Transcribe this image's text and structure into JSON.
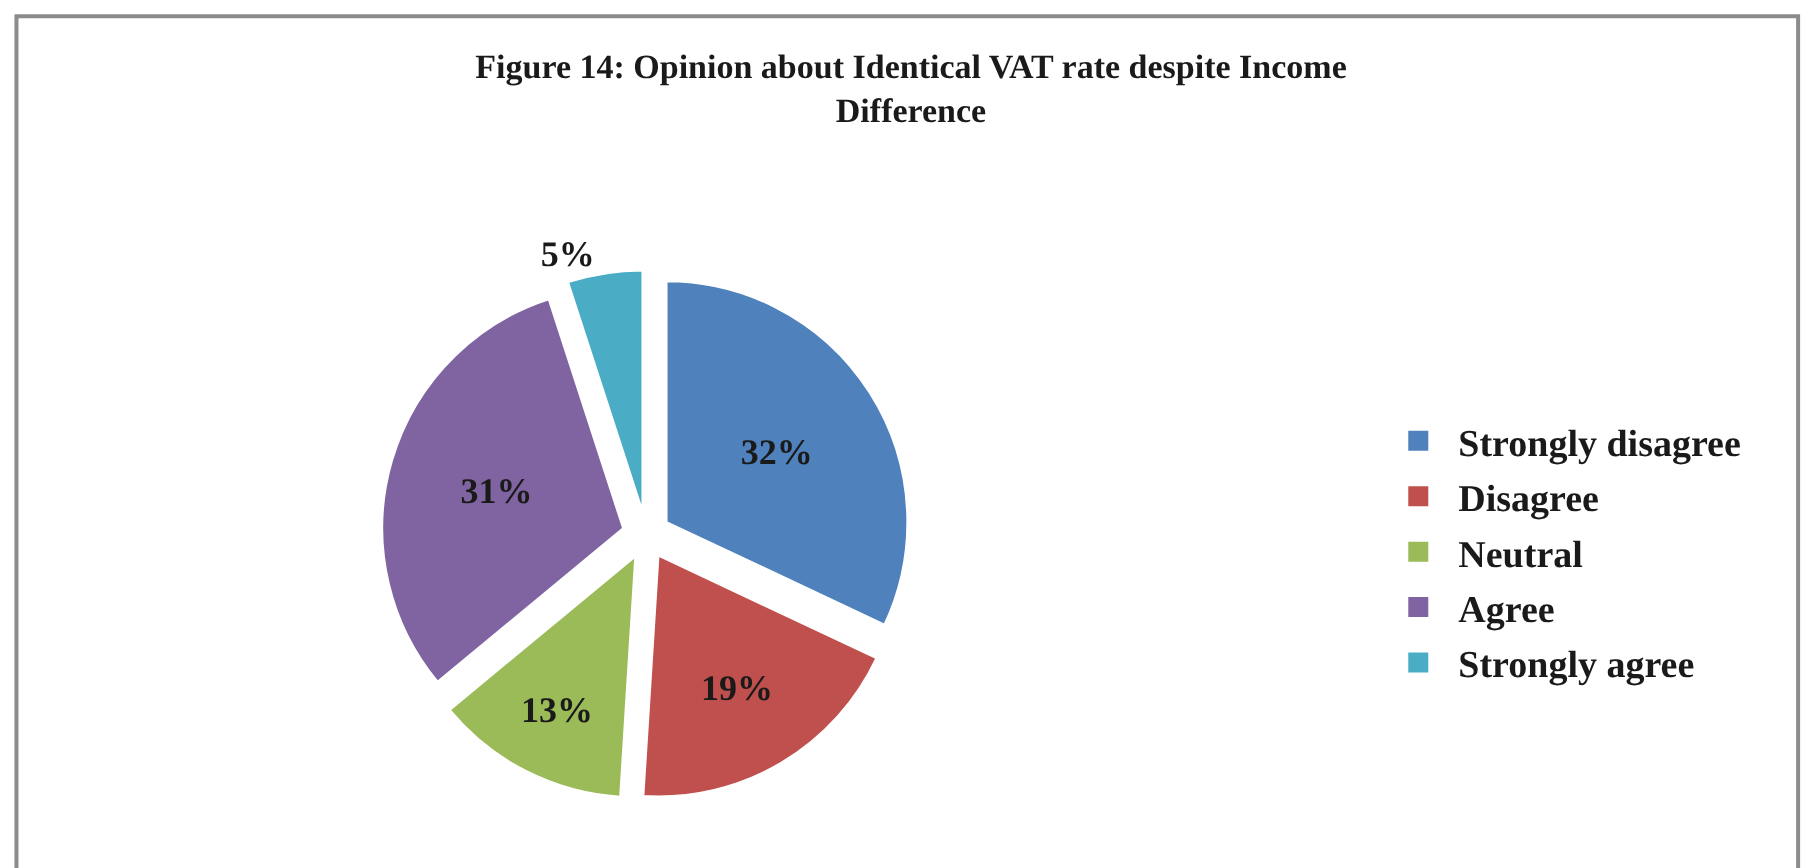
{
  "chart_data": {
    "type": "pie",
    "title": "Figure 14: Opinion about Identical VAT rate despite Income Difference",
    "categories": [
      "Strongly disagree",
      "Disagree",
      "Neutral",
      "Agree",
      "Strongly agree"
    ],
    "values": [
      32,
      19,
      13,
      31,
      5
    ],
    "value_labels": [
      "32%",
      "19%",
      "13%",
      "31%",
      "5%"
    ],
    "colors": [
      "#4f81bd",
      "#c0504d",
      "#9bbb59",
      "#8064a2",
      "#4bacc6"
    ],
    "legend": "right"
  }
}
